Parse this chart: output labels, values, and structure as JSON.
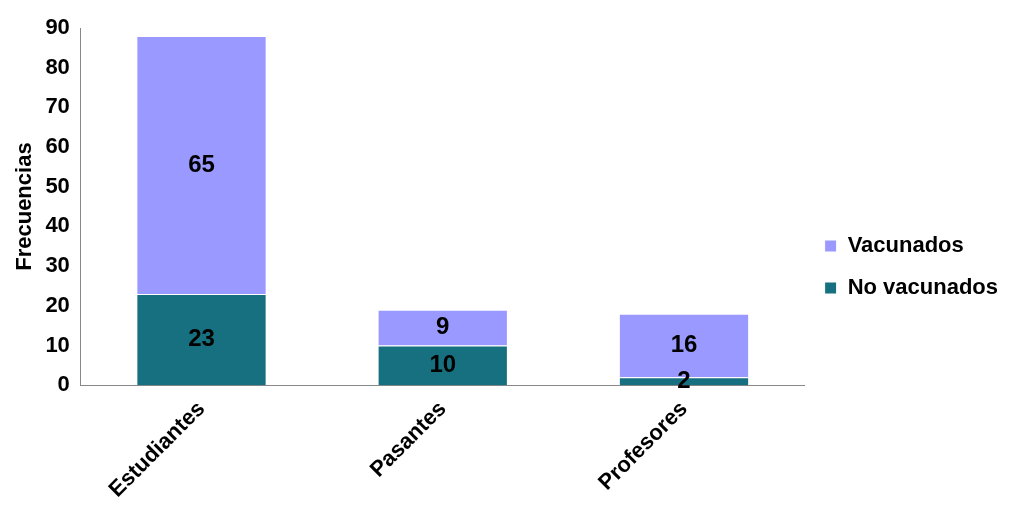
{
  "chart_data": {
    "type": "bar",
    "ylabel": "Frecuencias",
    "categories": [
      "Estudiantes",
      "Pasantes",
      "Profesores"
    ],
    "stacked": true,
    "series": [
      {
        "name": "No vacunados",
        "color": "#17707f",
        "values": [
          23,
          10,
          2
        ]
      },
      {
        "name": "Vacunados",
        "color": "#9999ff",
        "values": [
          65,
          9,
          16
        ]
      }
    ],
    "ylim": [
      0,
      90
    ],
    "yticks": [
      0,
      10,
      20,
      30,
      40,
      50,
      60,
      70,
      80,
      90
    ],
    "grid": false,
    "legend": "right",
    "data_labels": true
  }
}
